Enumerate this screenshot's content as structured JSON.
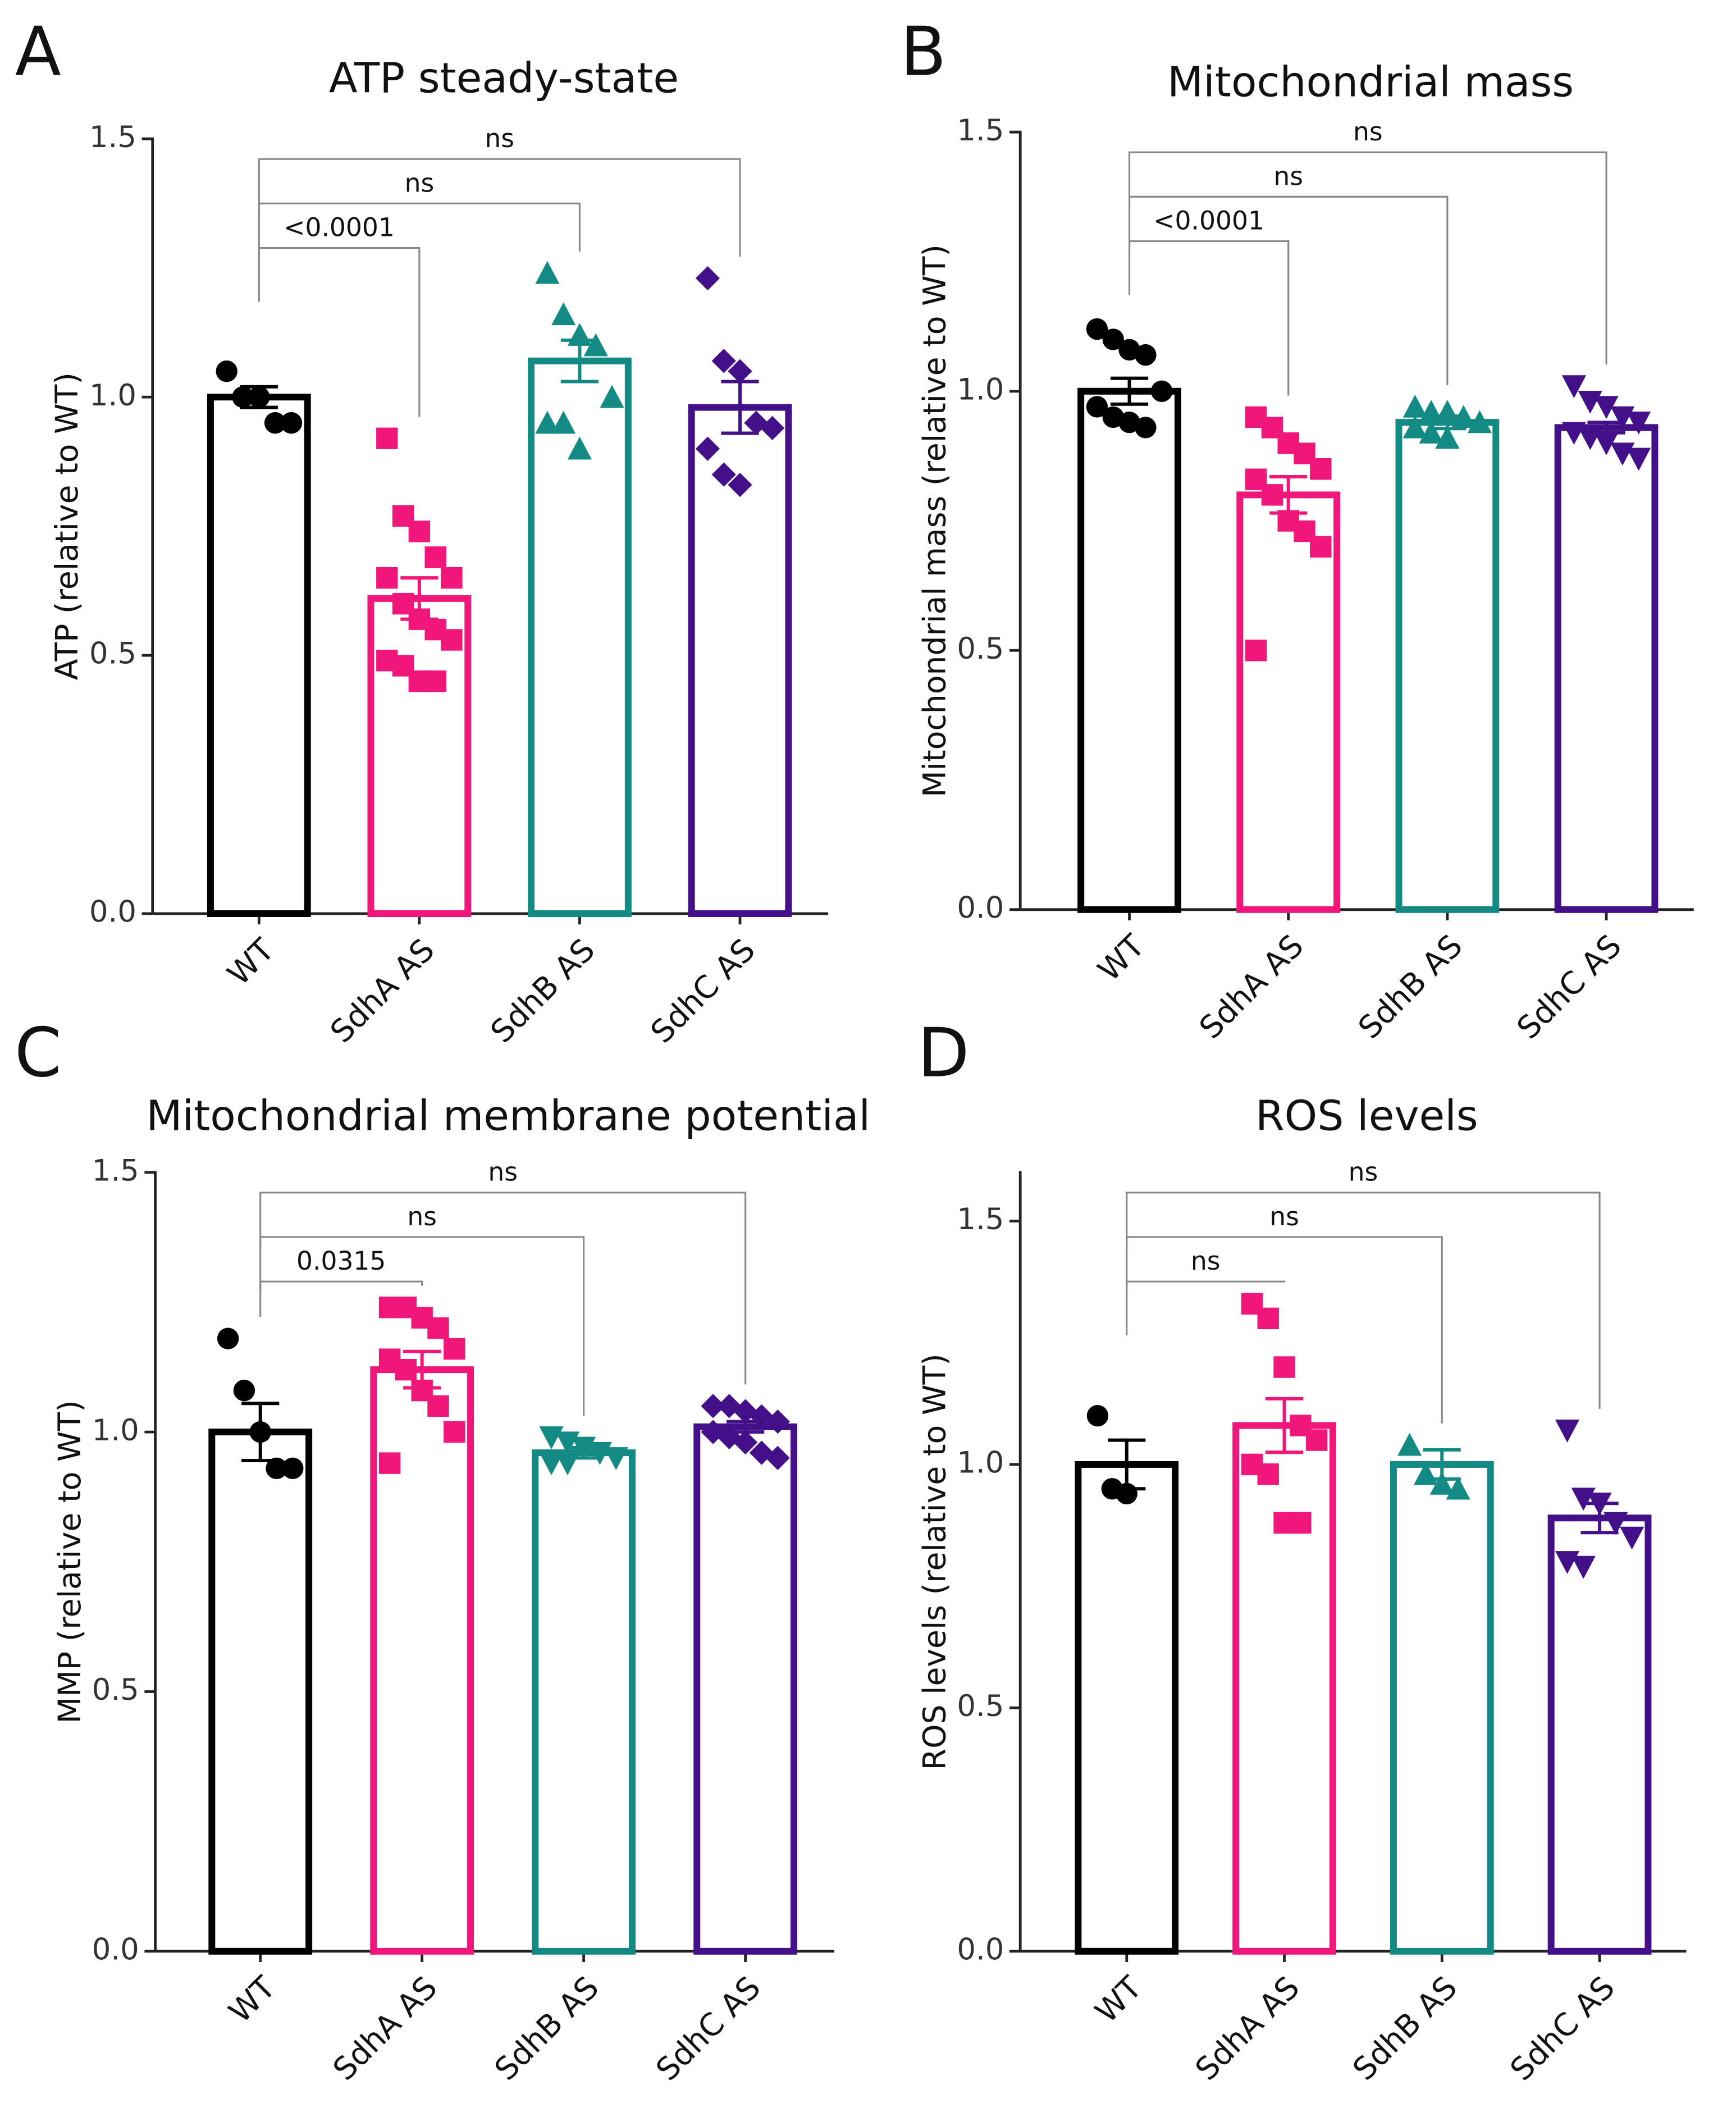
{
  "chart_data": [
    {
      "type": "bar",
      "panel": "A",
      "title": "ATP steady-state",
      "ylabel": "ATP (relative to WT)",
      "categories": [
        "WT",
        "SdhA AS",
        "SdhB AS",
        "SdhC AS"
      ],
      "colors": [
        "#000000",
        "#f0167a",
        "#148a84",
        "#43108a"
      ],
      "markers": [
        "circle",
        "square",
        "triangle",
        "diamond"
      ],
      "values": [
        1.0,
        0.61,
        1.07,
        0.98
      ],
      "errors": [
        0.02,
        0.04,
        0.04,
        0.05
      ],
      "points": [
        [
          1.05,
          1.0,
          1.0,
          0.95,
          0.95
        ],
        [
          0.92,
          0.77,
          0.74,
          0.69,
          0.65,
          0.65,
          0.6,
          0.57,
          0.55,
          0.53,
          0.49,
          0.48,
          0.45,
          0.45
        ],
        [
          1.24,
          1.16,
          1.12,
          1.1,
          1.0,
          0.95,
          0.95,
          0.9
        ],
        [
          1.23,
          1.07,
          1.05,
          0.95,
          0.94,
          0.9,
          0.85,
          0.83
        ]
      ],
      "comparisons": [
        {
          "between": [
            0,
            1
          ],
          "label": "<0.0001"
        },
        {
          "between": [
            0,
            2
          ],
          "label": "ns"
        },
        {
          "between": [
            0,
            3
          ],
          "label": "ns"
        }
      ],
      "ylim": [
        0,
        1.5
      ],
      "yticks": [
        {
          "value": 0,
          "label": "0.0"
        },
        {
          "value": 0.5,
          "label": "0.5"
        },
        {
          "value": 1,
          "label": "1.0"
        },
        {
          "value": 1.5,
          "label": "1.5"
        }
      ]
    },
    {
      "type": "bar",
      "panel": "B",
      "title": "Mitochondrial mass",
      "ylabel": "Mitochondrial mass (relative to WT)",
      "categories": [
        "WT",
        "SdhA AS",
        "SdhB AS",
        "SdhC AS"
      ],
      "colors": [
        "#000000",
        "#f0167a",
        "#148a84",
        "#43108a"
      ],
      "markers": [
        "circle",
        "square",
        "triangle",
        "triangle-down"
      ],
      "values": [
        1.0,
        0.8,
        0.94,
        0.93
      ],
      "errors": [
        0.025,
        0.035,
        0.012,
        0.01
      ],
      "points": [
        [
          1.12,
          1.1,
          1.08,
          1.07,
          1.0,
          0.97,
          0.95,
          0.94,
          0.93
        ],
        [
          0.95,
          0.93,
          0.9,
          0.88,
          0.85,
          0.83,
          0.8,
          0.75,
          0.73,
          0.7,
          0.5
        ],
        [
          0.97,
          0.96,
          0.96,
          0.95,
          0.94,
          0.93,
          0.92,
          0.91
        ],
        [
          1.01,
          0.98,
          0.97,
          0.95,
          0.94,
          0.92,
          0.91,
          0.9,
          0.88,
          0.87
        ]
      ],
      "comparisons": [
        {
          "between": [
            0,
            1
          ],
          "label": "<0.0001"
        },
        {
          "between": [
            0,
            2
          ],
          "label": "ns"
        },
        {
          "between": [
            0,
            3
          ],
          "label": "ns"
        }
      ],
      "ylim": [
        0,
        1.5
      ],
      "yticks": [
        {
          "value": 0,
          "label": "0.0"
        },
        {
          "value": 0.5,
          "label": "0.5"
        },
        {
          "value": 1,
          "label": "1.0"
        },
        {
          "value": 1.5,
          "label": "1.5"
        }
      ]
    },
    {
      "type": "bar",
      "panel": "C",
      "title": "Mitochondrial membrane potential",
      "ylabel": "MMP (relative to WT)",
      "categories": [
        "WT",
        "SdhA AS",
        "SdhB AS",
        "SdhC AS"
      ],
      "colors": [
        "#000000",
        "#f0167a",
        "#148a84",
        "#43108a"
      ],
      "markers": [
        "circle",
        "square",
        "triangle-down",
        "diamond"
      ],
      "values": [
        1.0,
        1.12,
        0.96,
        1.01
      ],
      "errors": [
        0.055,
        0.035,
        0.01,
        0.01
      ],
      "points": [
        [
          1.18,
          1.08,
          1.0,
          0.93,
          0.93
        ],
        [
          1.24,
          1.24,
          1.22,
          1.2,
          1.16,
          1.14,
          1.12,
          1.08,
          1.05,
          1.0,
          0.94
        ],
        [
          0.99,
          0.98,
          0.97,
          0.96,
          0.95,
          0.94,
          0.94
        ],
        [
          1.05,
          1.05,
          1.04,
          1.03,
          1.02,
          1.0,
          0.99,
          0.98,
          0.96,
          0.95
        ]
      ],
      "comparisons": [
        {
          "between": [
            0,
            1
          ],
          "label": "0.0315"
        },
        {
          "between": [
            0,
            2
          ],
          "label": "ns"
        },
        {
          "between": [
            0,
            3
          ],
          "label": "ns"
        }
      ],
      "ylim": [
        0,
        1.5
      ],
      "yticks": [
        {
          "value": 0,
          "label": "0.0"
        },
        {
          "value": 0.5,
          "label": "0.5"
        },
        {
          "value": 1,
          "label": "1.0"
        },
        {
          "value": 1.5,
          "label": "1.5"
        }
      ]
    },
    {
      "type": "bar",
      "panel": "D",
      "title": "ROS levels",
      "ylabel": "ROS levels (relative to WT)",
      "categories": [
        "WT",
        "SdhA AS",
        "SdhB AS",
        "SdhC AS"
      ],
      "colors": [
        "#000000",
        "#f0167a",
        "#148a84",
        "#43108a"
      ],
      "markers": [
        "circle",
        "square",
        "triangle",
        "triangle-down"
      ],
      "values": [
        1.0,
        1.08,
        1.0,
        0.89
      ],
      "errors": [
        0.05,
        0.055,
        0.03,
        0.03
      ],
      "points": [
        [
          1.1,
          0.95,
          0.94
        ],
        [
          1.33,
          1.3,
          1.2,
          1.08,
          1.05,
          1.0,
          0.98,
          0.88,
          0.88
        ],
        [
          1.04,
          0.98,
          0.96,
          0.95
        ],
        [
          1.07,
          0.93,
          0.92,
          0.88,
          0.85,
          0.8,
          0.79
        ]
      ],
      "comparisons": [
        {
          "between": [
            0,
            1
          ],
          "label": "ns"
        },
        {
          "between": [
            0,
            2
          ],
          "label": "ns"
        },
        {
          "between": [
            0,
            3
          ],
          "label": "ns"
        }
      ],
      "ylim": [
        0,
        1.6
      ],
      "yticks": [
        {
          "value": 0,
          "label": "0.0"
        },
        {
          "value": 0.5,
          "label": "0.5"
        },
        {
          "value": 1,
          "label": "1.0"
        },
        {
          "value": 1.5,
          "label": "1.5"
        }
      ]
    }
  ]
}
